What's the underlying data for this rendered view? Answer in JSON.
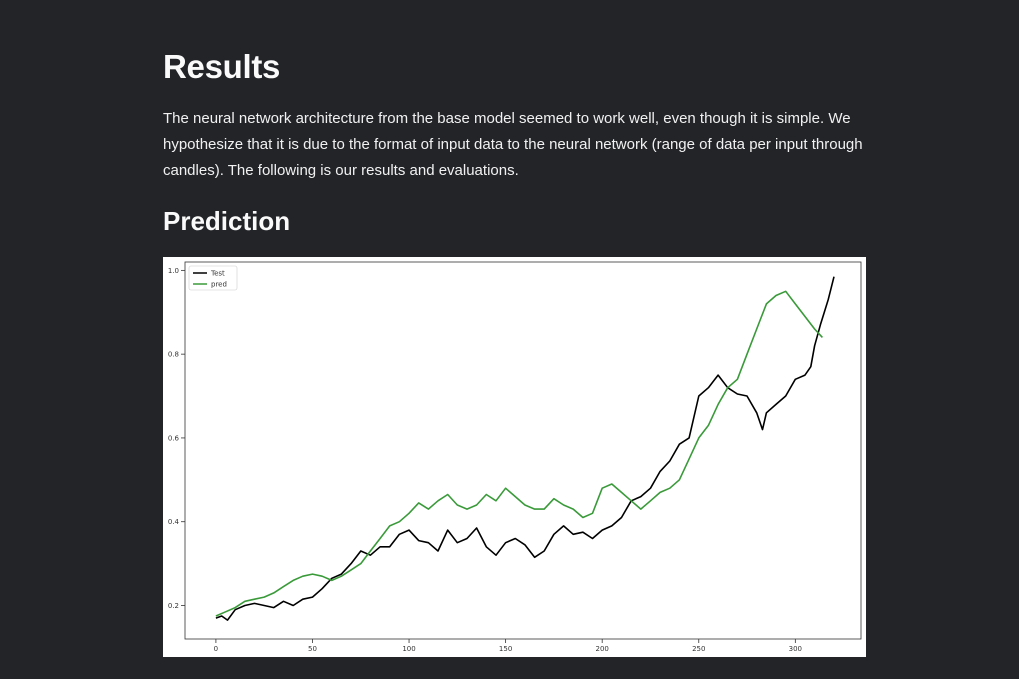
{
  "page": {
    "title": "Results",
    "intro": "The neural network architecture from the base model seemed to work well, even though it is simple. We hypothesize that it is due to the format of input data to the neural network (range of data per input through candles). The following is our results and evaluations.",
    "subtitle": "Prediction"
  },
  "chart_data": {
    "type": "line",
    "title": "",
    "xlabel": "",
    "ylabel": "",
    "xlim": [
      -16,
      334
    ],
    "ylim": [
      0.12,
      1.02
    ],
    "x_ticks": [
      0,
      50,
      100,
      150,
      200,
      250,
      300
    ],
    "y_ticks": [
      0.2,
      0.4,
      0.6,
      0.8,
      1.0
    ],
    "grid": false,
    "legend_position": "top-left",
    "series": [
      {
        "name": "Test",
        "color": "#000000",
        "x": [
          0,
          3,
          6,
          10,
          15,
          20,
          25,
          30,
          35,
          40,
          45,
          50,
          55,
          60,
          65,
          70,
          75,
          80,
          85,
          90,
          95,
          100,
          105,
          110,
          115,
          120,
          125,
          130,
          135,
          140,
          145,
          150,
          155,
          160,
          165,
          170,
          175,
          180,
          185,
          190,
          195,
          200,
          205,
          210,
          215,
          220,
          225,
          230,
          235,
          240,
          245,
          250,
          255,
          260,
          265,
          270,
          275,
          280,
          283,
          285,
          290,
          295,
          300,
          305,
          308,
          310,
          313,
          315,
          317,
          320
        ],
        "y": [
          0.17,
          0.175,
          0.165,
          0.19,
          0.2,
          0.205,
          0.2,
          0.195,
          0.21,
          0.2,
          0.215,
          0.22,
          0.24,
          0.265,
          0.275,
          0.3,
          0.33,
          0.32,
          0.34,
          0.34,
          0.37,
          0.38,
          0.355,
          0.35,
          0.33,
          0.38,
          0.35,
          0.36,
          0.385,
          0.34,
          0.32,
          0.35,
          0.36,
          0.345,
          0.315,
          0.33,
          0.37,
          0.39,
          0.37,
          0.375,
          0.36,
          0.38,
          0.39,
          0.41,
          0.45,
          0.46,
          0.48,
          0.52,
          0.545,
          0.585,
          0.6,
          0.7,
          0.72,
          0.75,
          0.72,
          0.705,
          0.7,
          0.66,
          0.62,
          0.66,
          0.68,
          0.7,
          0.74,
          0.75,
          0.77,
          0.82,
          0.87,
          0.9,
          0.93,
          0.985
        ]
      },
      {
        "name": "pred",
        "color": "#3a9a3a",
        "x": [
          0,
          5,
          10,
          15,
          20,
          25,
          30,
          35,
          40,
          45,
          50,
          55,
          60,
          65,
          70,
          75,
          80,
          85,
          90,
          95,
          100,
          105,
          110,
          115,
          120,
          125,
          130,
          135,
          140,
          145,
          150,
          155,
          160,
          165,
          170,
          175,
          180,
          185,
          190,
          195,
          200,
          205,
          210,
          215,
          220,
          225,
          230,
          235,
          240,
          245,
          250,
          255,
          260,
          265,
          270,
          275,
          280,
          285,
          290,
          295,
          300,
          305,
          310,
          314
        ],
        "y": [
          0.175,
          0.185,
          0.195,
          0.21,
          0.215,
          0.22,
          0.23,
          0.245,
          0.26,
          0.27,
          0.275,
          0.27,
          0.26,
          0.27,
          0.285,
          0.3,
          0.33,
          0.36,
          0.39,
          0.4,
          0.42,
          0.445,
          0.43,
          0.45,
          0.465,
          0.44,
          0.43,
          0.44,
          0.465,
          0.45,
          0.48,
          0.46,
          0.44,
          0.43,
          0.43,
          0.455,
          0.44,
          0.43,
          0.41,
          0.42,
          0.48,
          0.49,
          0.47,
          0.45,
          0.43,
          0.45,
          0.47,
          0.48,
          0.5,
          0.55,
          0.6,
          0.63,
          0.68,
          0.72,
          0.74,
          0.8,
          0.86,
          0.92,
          0.94,
          0.95,
          0.92,
          0.89,
          0.86,
          0.84
        ]
      }
    ]
  }
}
